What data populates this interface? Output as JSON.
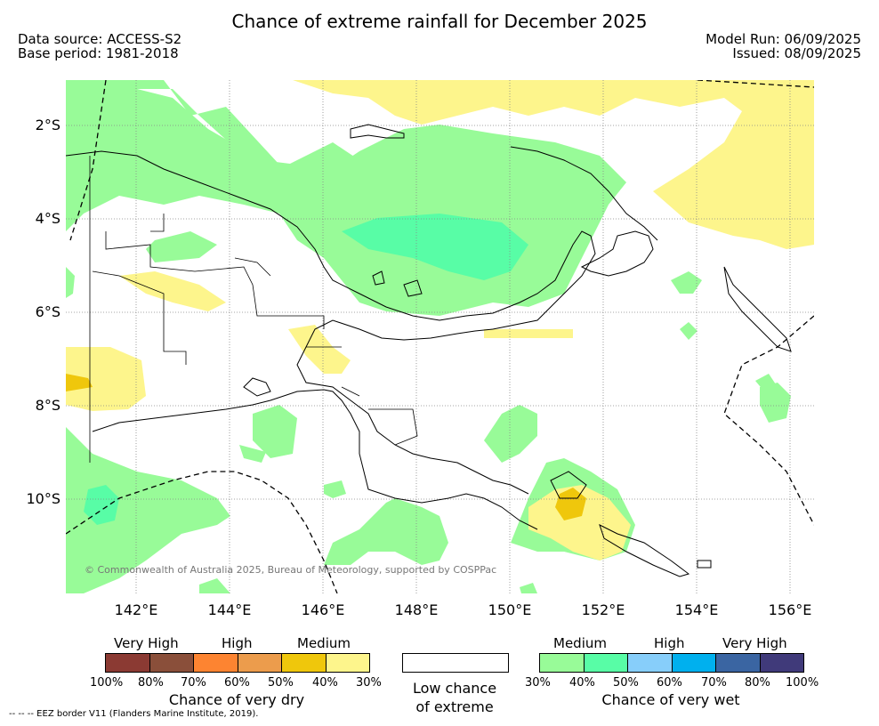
{
  "title": "Chance of extreme rainfall for December 2025",
  "data_source": "Data source: ACCESS-S2",
  "base_period": "Base period: 1981-2018",
  "model_run": "Model Run: 06/09/2025",
  "issued": "Issued: 08/09/2025",
  "copyright": "© Commonwealth of Australia 2025, Bureau of Meteorology, supported by COSPPac",
  "eez_note": "--  --  -- EEZ border V11 (Flanders Marine Institute, 2019).",
  "lat_ticks": [
    "2°S",
    "4°S",
    "6°S",
    "8°S",
    "10°S"
  ],
  "lon_ticks": [
    "142°E",
    "144°E",
    "146°E",
    "148°E",
    "150°E",
    "152°E",
    "154°E",
    "156°E"
  ],
  "dry_legend": {
    "levels": [
      "Very High",
      "High",
      "Medium"
    ],
    "colors": [
      "#8b3a33",
      "#8a4f3a",
      "#fd8431",
      "#ec9c4c",
      "#efc70c",
      "#fdf58c"
    ],
    "percents": [
      "100%",
      "80%",
      "70%",
      "60%",
      "50%",
      "40%",
      "30%"
    ],
    "caption": "Chance of very dry"
  },
  "low_legend": {
    "caption_line1": "Low chance",
    "caption_line2": "of extreme"
  },
  "wet_legend": {
    "levels": [
      "Medium",
      "High",
      "Very High"
    ],
    "colors": [
      "#98fb98",
      "#58fda6",
      "#87cefa",
      "#00b0ee",
      "#3a65a2",
      "#403a7a"
    ],
    "percents": [
      "30%",
      "40%",
      "50%",
      "60%",
      "70%",
      "80%",
      "100%"
    ],
    "caption": "Chance of very wet"
  },
  "colors": {
    "wet_medium": "#98fb98",
    "wet_medium_high": "#58fda6",
    "dry_medium": "#fdf58c",
    "dry_medium_high": "#efc70c"
  }
}
